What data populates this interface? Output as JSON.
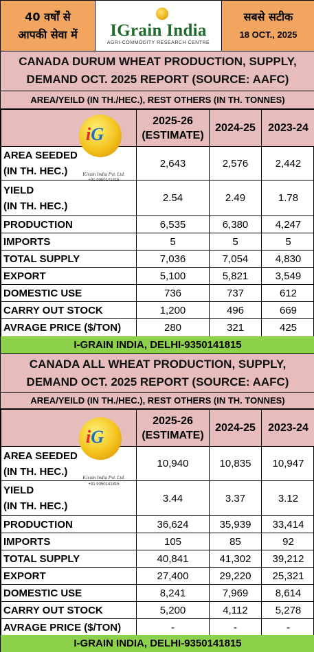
{
  "header": {
    "left_line1": "40 वर्षों से",
    "left_line2": "आपकी सेवा में",
    "brand": "IGrain India",
    "brand_sub": "AGRI-COMMODITY RESEARCH CENTRE",
    "right_line1": "सबसे सटीक",
    "date": "18 OCT., 2025"
  },
  "logo": {
    "text_i": "i",
    "text_g": "G",
    "caption": "IGrain India Pvt. Ltd.",
    "phone": "+91 9350141815"
  },
  "sections": [
    {
      "title_line1": "CANADA DURUM WHEAT PRODUCTION, SUPPLY,",
      "title_line2": "DEMAND OCT. 2025 REPORT (SOURCE: AAFC)",
      "units": "AREA/YEILD (IN TH./HEC.), REST OTHERS (IN TH. TONNES)",
      "columns": [
        "2025-26 (ESTIMATE)",
        "2024-25",
        "2023-24"
      ],
      "col1_line1": "2025-26",
      "col1_line2": "(ESTIMATE)",
      "rows": [
        {
          "label1": "AREA SEEDED",
          "label2": "(IN TH. HEC.)",
          "values": [
            "2,643",
            "2,576",
            "2,442"
          ]
        },
        {
          "label1": "YIELD",
          "label2": "(IN TH. HEC.)",
          "values": [
            "2.54",
            "2.49",
            "1.78"
          ]
        },
        {
          "label1": "PRODUCTION",
          "label2": "",
          "values": [
            "6,535",
            "6,380",
            "4,247"
          ]
        },
        {
          "label1": "IMPORTS",
          "label2": "",
          "values": [
            "5",
            "5",
            "5"
          ]
        },
        {
          "label1": "TOTAL SUPPLY",
          "label2": "",
          "values": [
            "7,036",
            "7,054",
            "4,830"
          ]
        },
        {
          "label1": "EXPORT",
          "label2": "",
          "values": [
            "5,100",
            "5,821",
            "3,549"
          ]
        },
        {
          "label1": "DOMESTIC USE",
          "label2": "",
          "values": [
            "736",
            "737",
            "612"
          ]
        },
        {
          "label1": "CARRY OUT STOCK",
          "label2": "",
          "values": [
            "1,200",
            "496",
            "669"
          ]
        },
        {
          "label1": "AVRAGE PRICE ($/TON)",
          "label2": "",
          "values": [
            "280",
            "321",
            "425"
          ]
        }
      ],
      "footer": "I-GRAIN INDIA, DELHI-9350141815"
    },
    {
      "title_line1": "CANADA ALL WHEAT PRODUCTION, SUPPLY,",
      "title_line2": "DEMAND OCT. 2025 REPORT (SOURCE: AAFC)",
      "units": "AREA/YEILD (IN TH./HEC.), REST OTHERS (IN TH. TONNES)",
      "columns": [
        "2025-26 (ESTIMATE)",
        "2024-25",
        "2023-24"
      ],
      "col1_line1": "2025-26",
      "col1_line2": "(ESTIMATE)",
      "rows": [
        {
          "label1": "AREA SEEDED",
          "label2": "(IN TH. HEC.)",
          "values": [
            "10,940",
            "10,835",
            "10,947"
          ]
        },
        {
          "label1": "YIELD",
          "label2": "(IN TH. HEC.)",
          "values": [
            "3.44",
            "3.37",
            "3.12"
          ]
        },
        {
          "label1": "PRODUCTION",
          "label2": "",
          "values": [
            "36,624",
            "35,939",
            "33,414"
          ]
        },
        {
          "label1": "IMPORTS",
          "label2": "",
          "values": [
            "105",
            "85",
            "92"
          ]
        },
        {
          "label1": "TOTAL SUPPLY",
          "label2": "",
          "values": [
            "40,841",
            "41,302",
            "39,212"
          ]
        },
        {
          "label1": "EXPORT",
          "label2": "",
          "values": [
            "27,400",
            "29,220",
            "25,321"
          ]
        },
        {
          "label1": "DOMESTIC USE",
          "label2": "",
          "values": [
            "8,241",
            "7,969",
            "8,614"
          ]
        },
        {
          "label1": "CARRY OUT STOCK",
          "label2": "",
          "values": [
            "5,200",
            "4,112",
            "5,278"
          ]
        },
        {
          "label1": "AVRAGE PRICE ($/TON)",
          "label2": "",
          "values": [
            "-",
            "-",
            "-"
          ]
        }
      ],
      "footer": "I-GRAIN INDIA, DELHI-9350141815"
    }
  ],
  "colors": {
    "header_orange": "#f2a55e",
    "band_pink": "#e6bcbc",
    "footer_green": "#8dd14b",
    "brand_green": "#1f6b2c"
  }
}
